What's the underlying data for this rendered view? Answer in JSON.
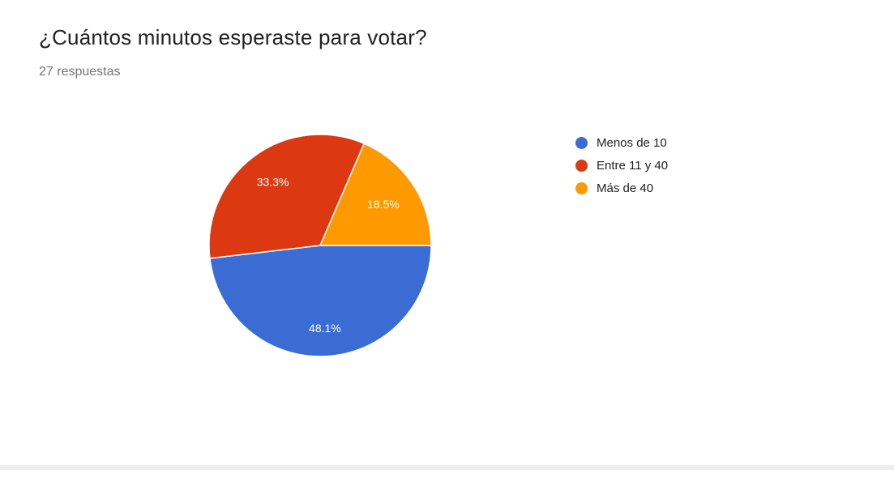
{
  "page": {
    "background_color": "#ffffff",
    "divider_color": "#eeeeee"
  },
  "header": {
    "title": "¿Cuántos minutos esperaste para votar?",
    "subtitle": "27 respuestas"
  },
  "chart_data": {
    "type": "pie",
    "title": "¿Cuántos minutos esperaste para votar?",
    "subtitle": "27 respuestas",
    "total_responses": 27,
    "categories": [
      "Menos de 10",
      "Entre 11 y 40",
      "Más de 40"
    ],
    "percentages": [
      48.1,
      33.3,
      18.5
    ],
    "slice_labels": [
      "48.1%",
      "33.3%",
      "18.5%"
    ],
    "colors": [
      "#3B6CD3",
      "#DC3912",
      "#FF9900"
    ],
    "legend_position": "right",
    "label_text_color": "#ffffff"
  }
}
